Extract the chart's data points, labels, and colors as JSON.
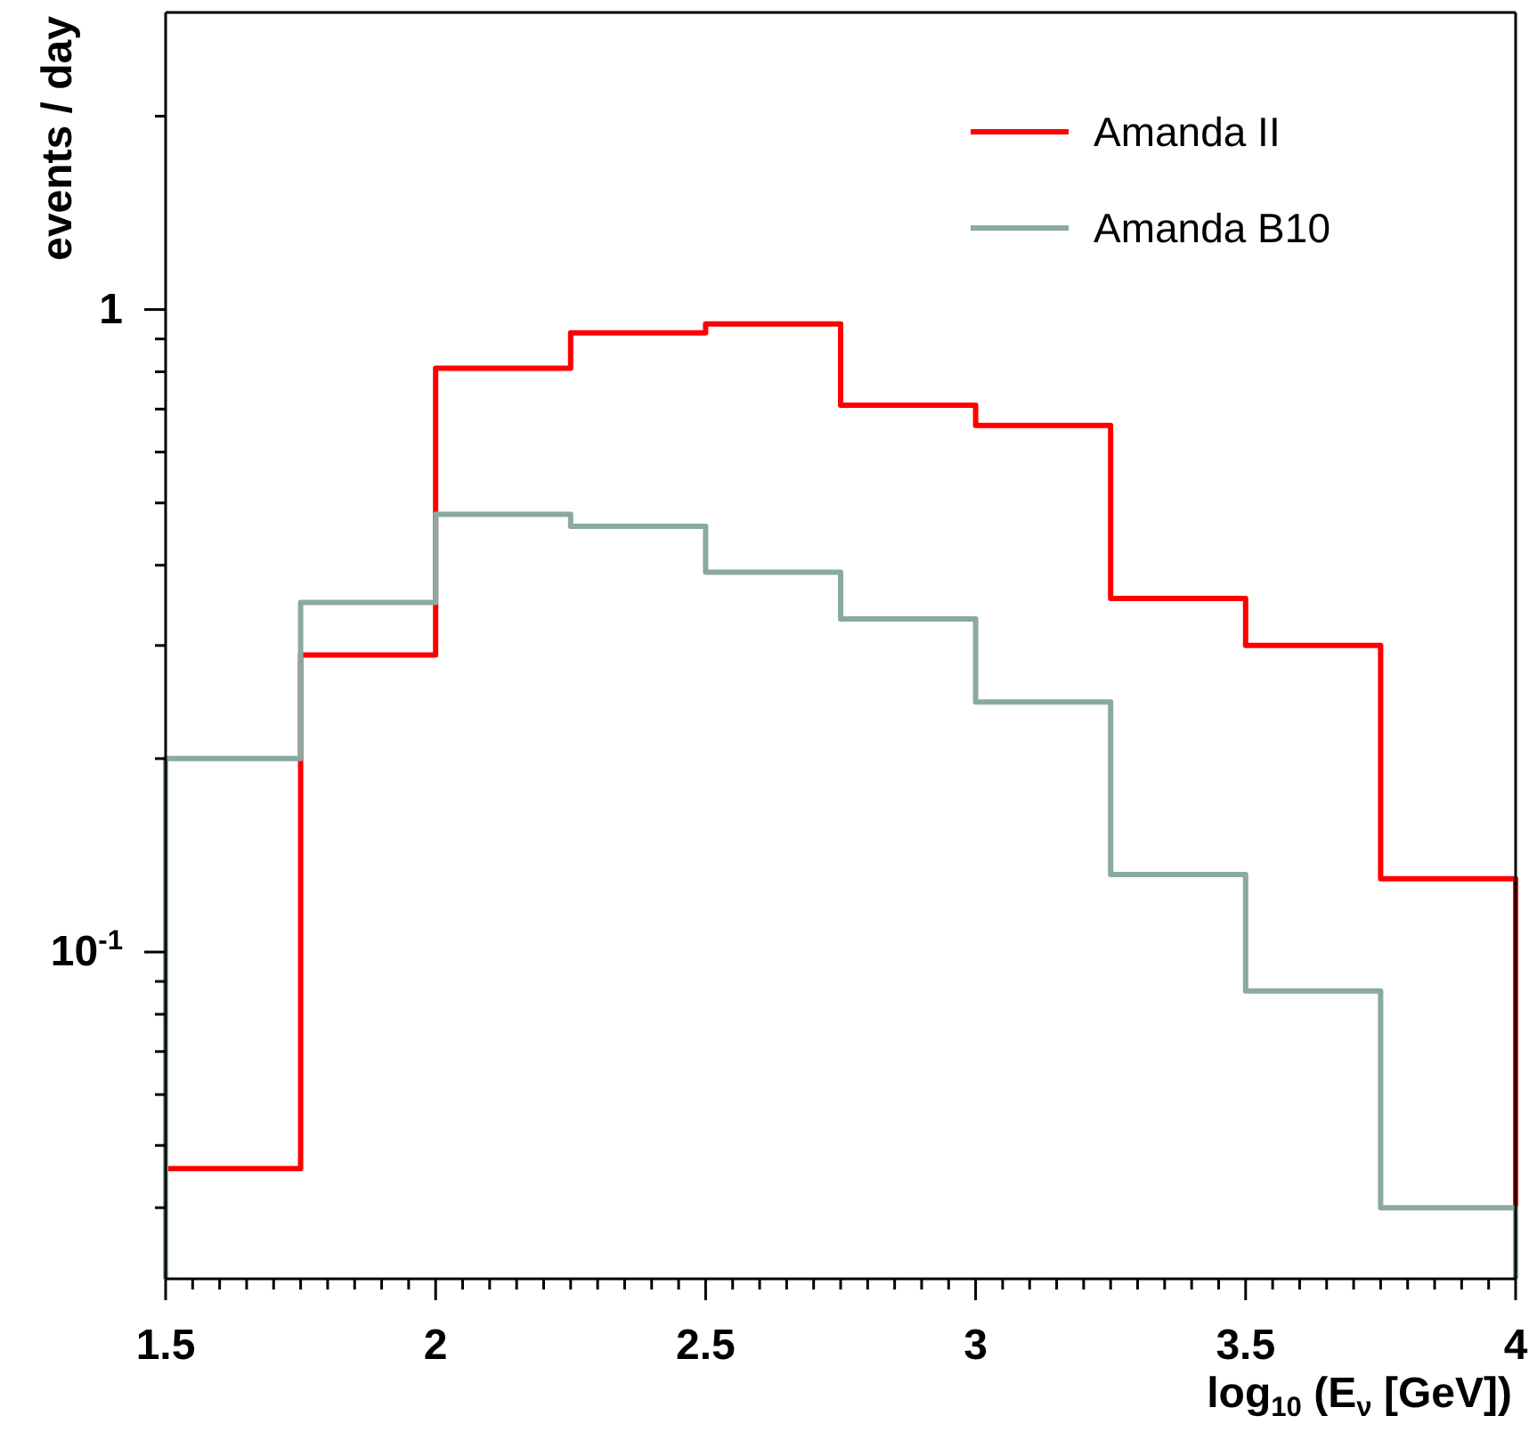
{
  "chart_data": {
    "type": "histogram",
    "xlabel": "log$_{10}$ (E$_{ν}$ [GeV])",
    "ylabel": "events / day",
    "log": "y",
    "legend": "top right",
    "grid": false,
    "bins": [
      1.5,
      1.75,
      2,
      2.25,
      2.5,
      2.75,
      3,
      3.25,
      3.5,
      3.75,
      4
    ],
    "series": [
      {
        "name": "Amanda II",
        "color": "#ff0000",
        "values": [
          0.046,
          0.29,
          0.81,
          0.92,
          0.95,
          0.71,
          0.66,
          0.355,
          0.3,
          0.13
        ]
      },
      {
        "name": "Amanda B10",
        "color": "#8aa9a1",
        "values": [
          0.2,
          0.35,
          0.48,
          0.46,
          0.39,
          0.33,
          0.245,
          0.132,
          0.087,
          0.04
        ]
      }
    ],
    "xlim": [
      1.5,
      4
    ],
    "xticks": [
      1.5,
      {
        "value": 1.55,
        "label": null
      },
      {
        "value": 1.6,
        "label": null
      },
      {
        "value": 1.65,
        "label": null
      },
      {
        "value": 1.7,
        "label": null
      },
      {
        "value": 1.75,
        "label": null
      },
      {
        "value": 1.8,
        "label": null
      },
      {
        "value": 1.85,
        "label": null
      },
      {
        "value": 1.9,
        "label": null
      },
      {
        "value": 1.95,
        "label": null
      },
      2,
      {
        "value": 2.05,
        "label": null
      },
      {
        "value": 2.1,
        "label": null
      },
      {
        "value": 2.15,
        "label": null
      },
      {
        "value": 2.2,
        "label": null
      },
      {
        "value": 2.25,
        "label": null
      },
      {
        "value": 2.3,
        "label": null
      },
      {
        "value": 2.35,
        "label": null
      },
      {
        "value": 2.4,
        "label": null
      },
      {
        "value": 2.45,
        "label": null
      },
      2.5,
      {
        "value": 2.55,
        "label": null
      },
      {
        "value": 2.6,
        "label": null
      },
      {
        "value": 2.65,
        "label": null
      },
      {
        "value": 2.7,
        "label": null
      },
      {
        "value": 2.75,
        "label": null
      },
      {
        "value": 2.8,
        "label": null
      },
      {
        "value": 2.85,
        "label": null
      },
      {
        "value": 2.9,
        "label": null
      },
      {
        "value": 2.95,
        "label": null
      },
      3,
      {
        "value": 3.05,
        "label": null
      },
      {
        "value": 3.1,
        "label": null
      },
      {
        "value": 3.15,
        "label": null
      },
      {
        "value": 3.2,
        "label": null
      },
      {
        "value": 3.25,
        "label": null
      },
      {
        "value": 3.3,
        "label": null
      },
      {
        "value": 3.35,
        "label": null
      },
      {
        "value": 3.4,
        "label": null
      },
      {
        "value": 3.45,
        "label": null
      },
      3.5,
      {
        "value": 3.55,
        "label": null
      },
      {
        "value": 3.6,
        "label": null
      },
      {
        "value": 3.65,
        "label": null
      },
      {
        "value": 3.7,
        "label": null
      },
      {
        "value": 3.75,
        "label": null
      },
      {
        "value": 3.8,
        "label": null
      },
      {
        "value": 3.85,
        "label": null
      },
      {
        "value": 3.9,
        "label": null
      },
      {
        "value": 3.95,
        "label": null
      },
      4
    ],
    "ylim": [
      0.031,
      2.9
    ],
    "yticks": [
      {
        "value": 0.04,
        "label": null
      },
      {
        "value": 0.05,
        "label": null
      },
      {
        "value": 0.06,
        "label": null
      },
      {
        "value": 0.07,
        "label": null
      },
      {
        "value": 0.08,
        "label": null
      },
      {
        "value": 0.09,
        "label": null
      },
      {
        "value": 0.1,
        "label": "10$^{-1}$"
      },
      {
        "value": 0.2,
        "label": null
      },
      {
        "value": 0.3,
        "label": null
      },
      {
        "value": 0.4,
        "label": null
      },
      {
        "value": 0.5,
        "label": null
      },
      {
        "value": 0.6,
        "label": null
      },
      {
        "value": 0.7,
        "label": null
      },
      {
        "value": 0.8,
        "label": null
      },
      {
        "value": 0.9,
        "label": null
      },
      1,
      {
        "value": 2,
        "label": null
      }
    ]
  }
}
